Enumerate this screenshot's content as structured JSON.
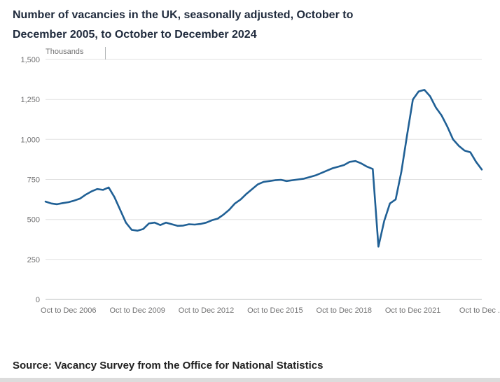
{
  "header": {
    "title_line1": "Number of vacancies in the UK, seasonally adjusted, October to",
    "title_line2": "December 2005, to October to December 2024"
  },
  "source": {
    "text": "Source: Vacancy Survey from the Office for National Statistics"
  },
  "chart_data": {
    "type": "line",
    "title": "Number of vacancies in the UK, seasonally adjusted, October to December 2005, to October to December 2024",
    "series_name": "Vacancies",
    "xlabel": "",
    "ylabel": "Thousands",
    "ylim": [
      0,
      1500
    ],
    "grid": "horizontal",
    "legend": "none",
    "line_color": "#206095",
    "categories": [
      "Oct-Dec 2005",
      "Jan-Mar 2006",
      "Apr-Jun 2006",
      "Jul-Sep 2006",
      "Oct-Dec 2006",
      "Jan-Mar 2007",
      "Apr-Jun 2007",
      "Jul-Sep 2007",
      "Oct-Dec 2007",
      "Jan-Mar 2008",
      "Apr-Jun 2008",
      "Jul-Sep 2008",
      "Oct-Dec 2008",
      "Jan-Mar 2009",
      "Apr-Jun 2009",
      "Jul-Sep 2009",
      "Oct-Dec 2009",
      "Jan-Mar 2010",
      "Apr-Jun 2010",
      "Jul-Sep 2010",
      "Oct-Dec 2010",
      "Jan-Mar 2011",
      "Apr-Jun 2011",
      "Jul-Sep 2011",
      "Oct-Dec 2011",
      "Jan-Mar 2012",
      "Apr-Jun 2012",
      "Jul-Sep 2012",
      "Oct-Dec 2012",
      "Jan-Mar 2013",
      "Apr-Jun 2013",
      "Jul-Sep 2013",
      "Oct-Dec 2013",
      "Jan-Mar 2014",
      "Apr-Jun 2014",
      "Jul-Sep 2014",
      "Oct-Dec 2014",
      "Jan-Mar 2015",
      "Apr-Jun 2015",
      "Jul-Sep 2015",
      "Oct-Dec 2015",
      "Jan-Mar 2016",
      "Apr-Jun 2016",
      "Jul-Sep 2016",
      "Oct-Dec 2016",
      "Jan-Mar 2017",
      "Apr-Jun 2017",
      "Jul-Sep 2017",
      "Oct-Dec 2017",
      "Jan-Mar 2018",
      "Apr-Jun 2018",
      "Jul-Sep 2018",
      "Oct-Dec 2018",
      "Jan-Mar 2019",
      "Apr-Jun 2019",
      "Jul-Sep 2019",
      "Oct-Dec 2019",
      "Jan-Mar 2020",
      "Apr-Jun 2020",
      "Jul-Sep 2020",
      "Oct-Dec 2020",
      "Jan-Mar 2021",
      "Apr-Jun 2021",
      "Jul-Sep 2021",
      "Oct-Dec 2021",
      "Jan-Mar 2022",
      "Apr-Jun 2022",
      "Jul-Sep 2022",
      "Oct-Dec 2022",
      "Jan-Mar 2023",
      "Apr-Jun 2023",
      "Jul-Sep 2023",
      "Oct-Dec 2023",
      "Jan-Mar 2024",
      "Apr-Jun 2024",
      "Jul-Sep 2024",
      "Oct-Dec 2024"
    ],
    "values": [
      612,
      600,
      595,
      602,
      608,
      618,
      630,
      655,
      675,
      690,
      685,
      700,
      640,
      560,
      480,
      435,
      430,
      440,
      475,
      480,
      465,
      480,
      470,
      460,
      462,
      470,
      468,
      472,
      480,
      495,
      505,
      530,
      560,
      600,
      625,
      660,
      690,
      720,
      735,
      740,
      745,
      748,
      740,
      745,
      750,
      755,
      765,
      775,
      790,
      805,
      820,
      830,
      840,
      860,
      865,
      850,
      830,
      815,
      330,
      490,
      600,
      625,
      800,
      1030,
      1250,
      1300,
      1310,
      1270,
      1200,
      1150,
      1080,
      1000,
      960,
      930,
      920,
      860,
      812
    ],
    "yticks": [
      {
        "value": 0,
        "label": "0"
      },
      {
        "value": 250,
        "label": "250"
      },
      {
        "value": 500,
        "label": "500"
      },
      {
        "value": 750,
        "label": "750"
      },
      {
        "value": 1000,
        "label": "1,000"
      },
      {
        "value": 1250,
        "label": "1,250"
      },
      {
        "value": 1500,
        "label": "1,500"
      }
    ],
    "x_ticks": [
      {
        "index": 4,
        "label": "Oct to Dec 2006"
      },
      {
        "index": 16,
        "label": "Oct to Dec 2009"
      },
      {
        "index": 28,
        "label": "Oct to Dec 2012"
      },
      {
        "index": 40,
        "label": "Oct to Dec 2015"
      },
      {
        "index": 52,
        "label": "Oct to Dec 2018"
      },
      {
        "index": 64,
        "label": "Oct to Dec 2021"
      },
      {
        "index": 76,
        "label": "Oct to Dec ..."
      }
    ]
  }
}
